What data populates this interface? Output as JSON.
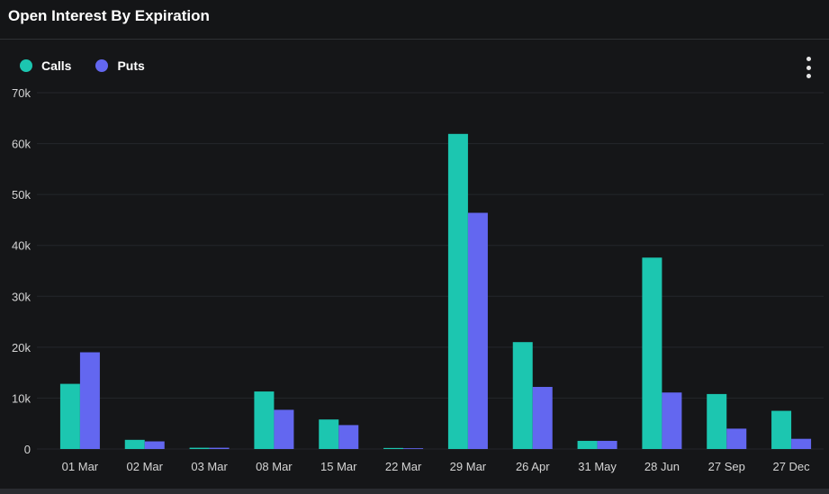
{
  "header": {
    "title": "Open Interest By Expiration"
  },
  "colors": {
    "calls": "#1cc6b0",
    "puts": "#6367f0",
    "grid": "#25272b",
    "axis_text": "#d4d4d4",
    "background": "#151618"
  },
  "icons": {
    "menu": "vertical-ellipsis-icon"
  },
  "chart_data": {
    "type": "bar",
    "title": "Open Interest By Expiration",
    "xlabel": "",
    "ylabel": "",
    "ylim": [
      0,
      70000
    ],
    "yticks": [
      {
        "value": 0,
        "label": "0"
      },
      {
        "value": 10000,
        "label": "10k"
      },
      {
        "value": 20000,
        "label": "20k"
      },
      {
        "value": 30000,
        "label": "30k"
      },
      {
        "value": 40000,
        "label": "40k"
      },
      {
        "value": 50000,
        "label": "50k"
      },
      {
        "value": 60000,
        "label": "60k"
      },
      {
        "value": 70000,
        "label": "70k"
      }
    ],
    "grid": true,
    "legend": "top-left",
    "categories": [
      "01 Mar",
      "02 Mar",
      "03 Mar",
      "08 Mar",
      "15 Mar",
      "22 Mar",
      "29 Mar",
      "26 Apr",
      "31 May",
      "28 Jun",
      "27 Sep",
      "27 Dec"
    ],
    "series": [
      {
        "name": "Calls",
        "color": "#1cc6b0",
        "values": [
          12800,
          1800,
          250,
          11300,
          5800,
          200,
          61900,
          21000,
          1600,
          37600,
          10800,
          7500
        ]
      },
      {
        "name": "Puts",
        "color": "#6367f0",
        "values": [
          19000,
          1500,
          250,
          7700,
          4700,
          150,
          46400,
          12200,
          1600,
          11100,
          4000,
          2000
        ]
      }
    ]
  }
}
